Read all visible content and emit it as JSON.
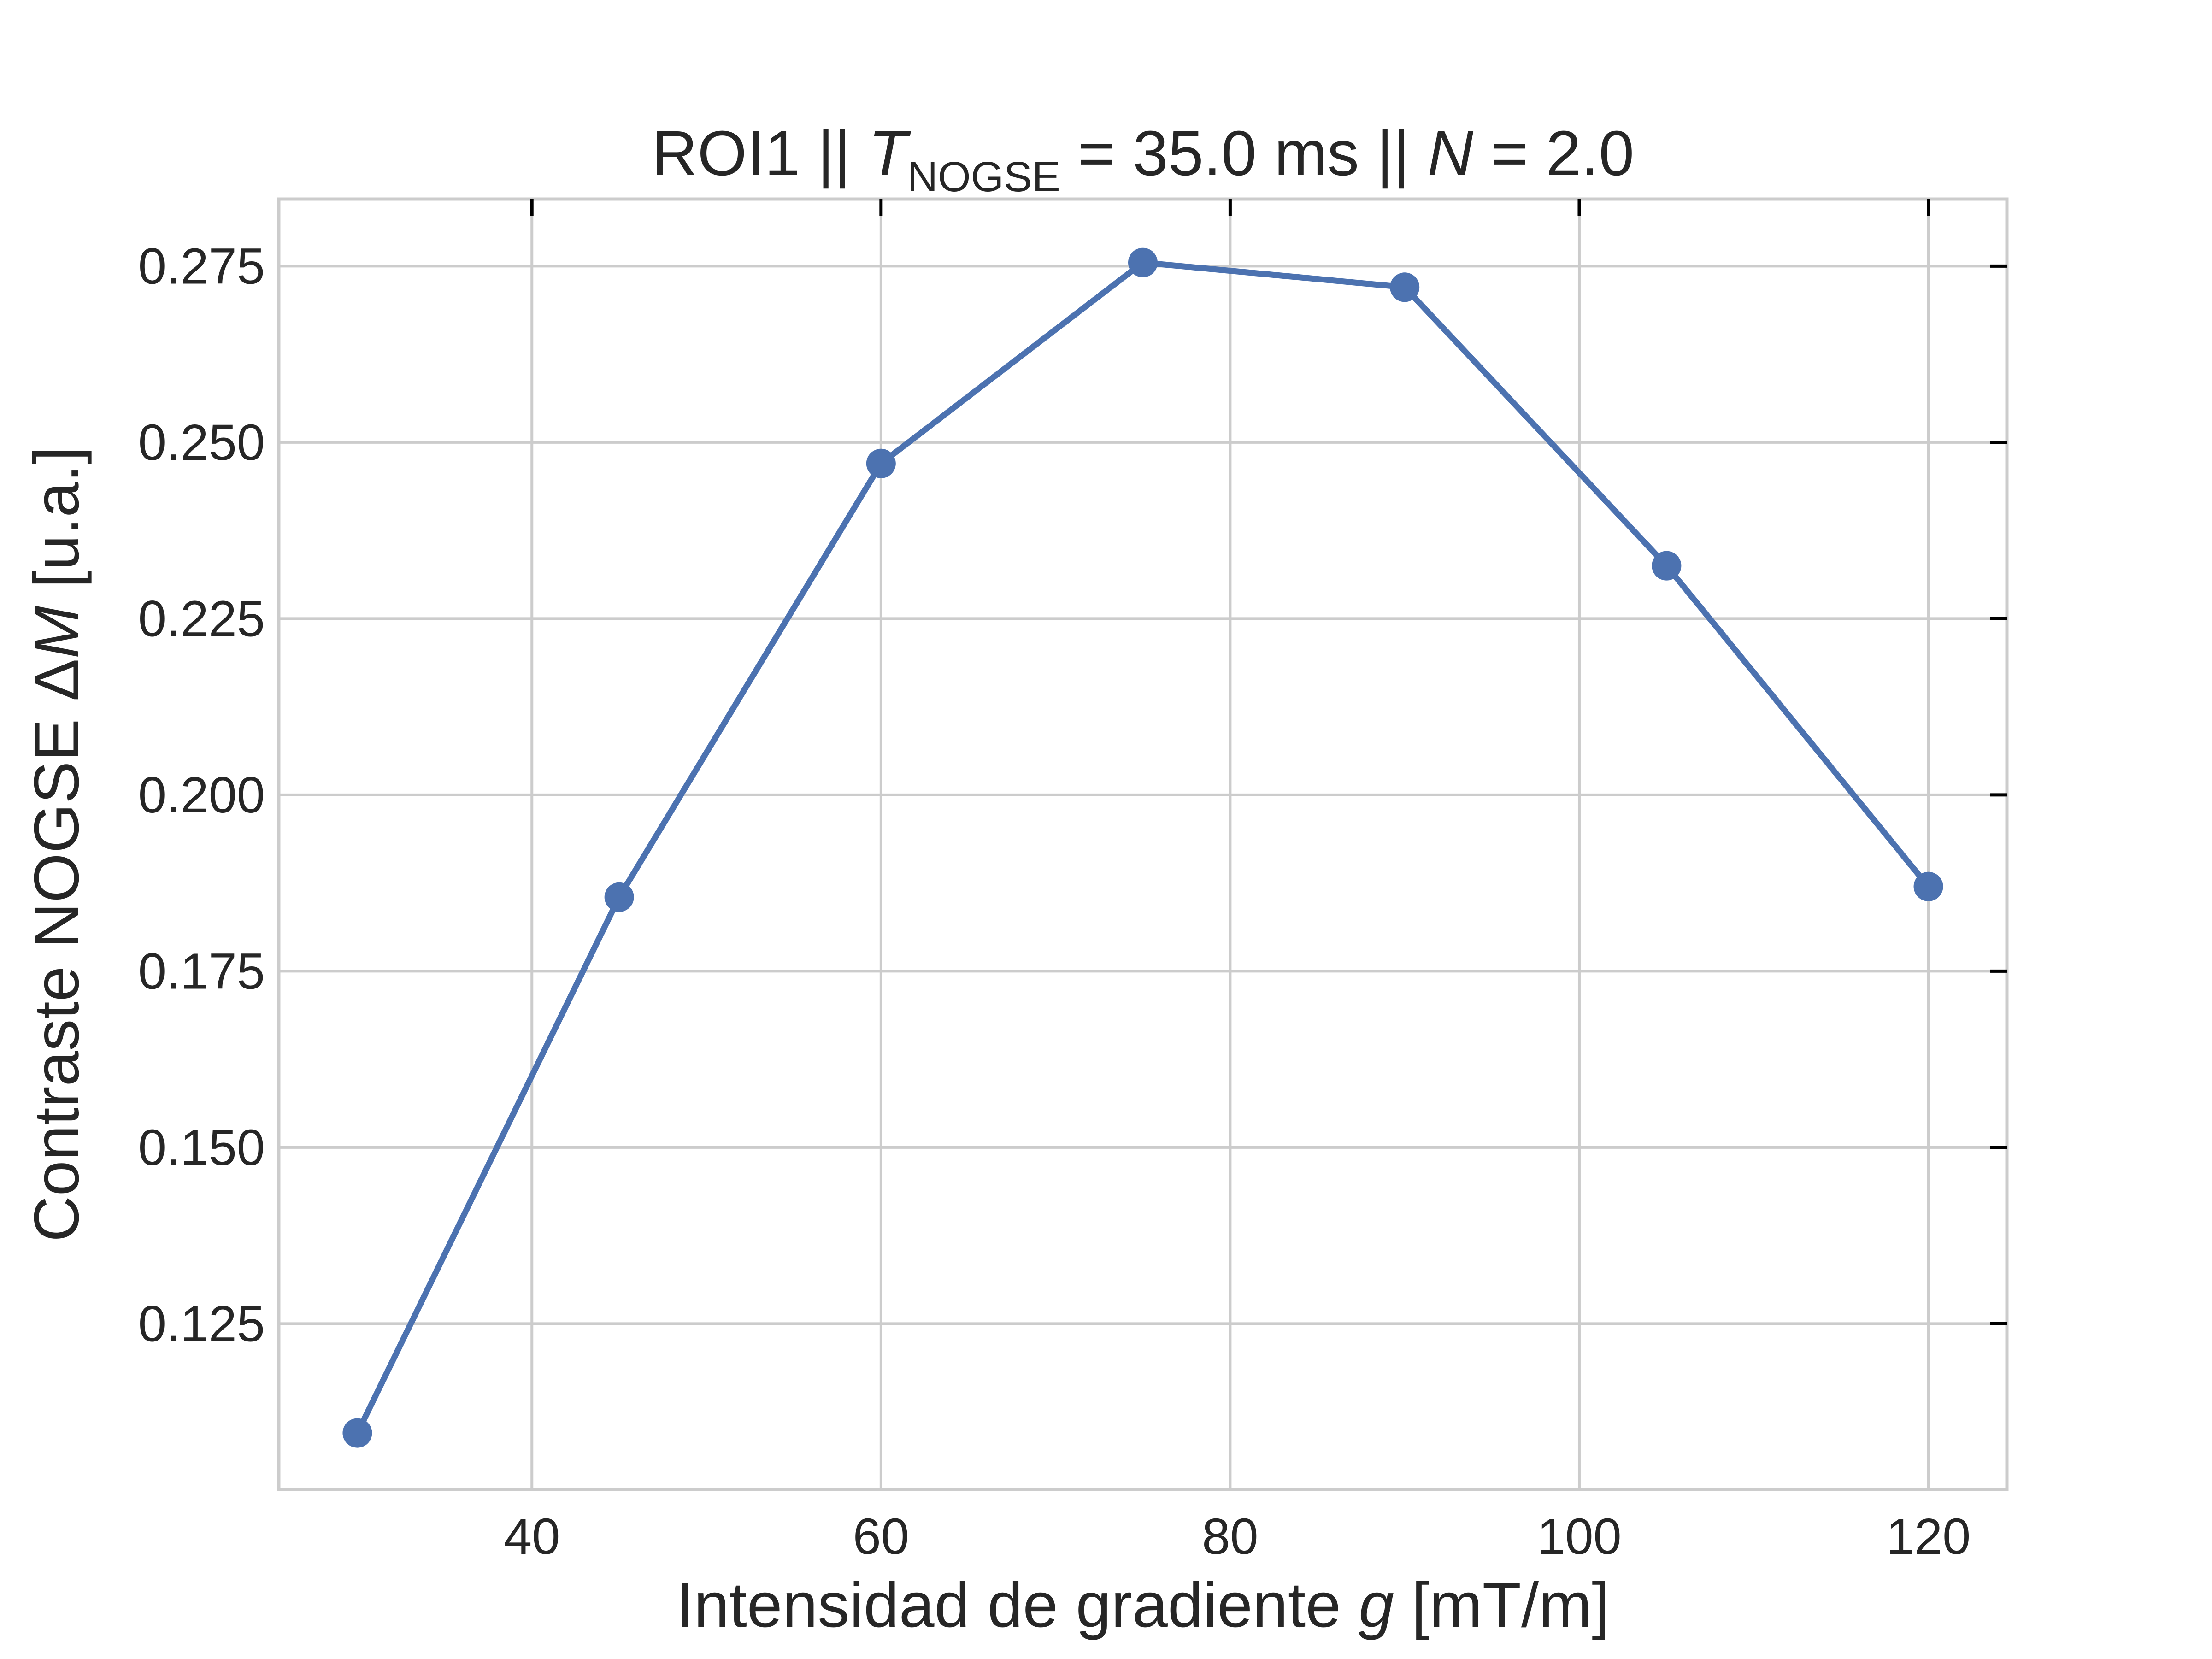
{
  "chart_data": {
    "type": "line",
    "title": {
      "prefix": "ROI1 || ",
      "t_symbol": "T",
      "t_subscript": "NOGSE",
      "t_value": " = 35.0 ms  ||  ",
      "n_symbol": "N",
      "n_value": " = 2.0"
    },
    "xlabel": {
      "prefix": "Intensidad de gradiente ",
      "symbol": "g",
      "suffix": " [mT/m]"
    },
    "ylabel": {
      "prefix": "Contraste NOGSE Δ",
      "symbol": "M",
      "suffix": " [u.a.]"
    },
    "xlim": [
      25.5,
      124.5
    ],
    "ylim": [
      0.1015,
      0.2845
    ],
    "x_ticks": [
      40,
      60,
      80,
      100,
      120
    ],
    "x_tick_labels": [
      "40",
      "60",
      "80",
      "100",
      "120"
    ],
    "y_ticks": [
      0.125,
      0.15,
      0.175,
      0.2,
      0.225,
      0.25,
      0.275
    ],
    "y_tick_labels": [
      "0.125",
      "0.150",
      "0.175",
      "0.200",
      "0.225",
      "0.250",
      "0.275"
    ],
    "grid": true,
    "series": [
      {
        "color": "#4c72b0",
        "marker": "circle",
        "x": [
          30,
          45,
          60,
          75,
          90,
          105,
          120
        ],
        "y": [
          0.1095,
          0.1855,
          0.247,
          0.2755,
          0.272,
          0.2325,
          0.187
        ]
      }
    ]
  }
}
